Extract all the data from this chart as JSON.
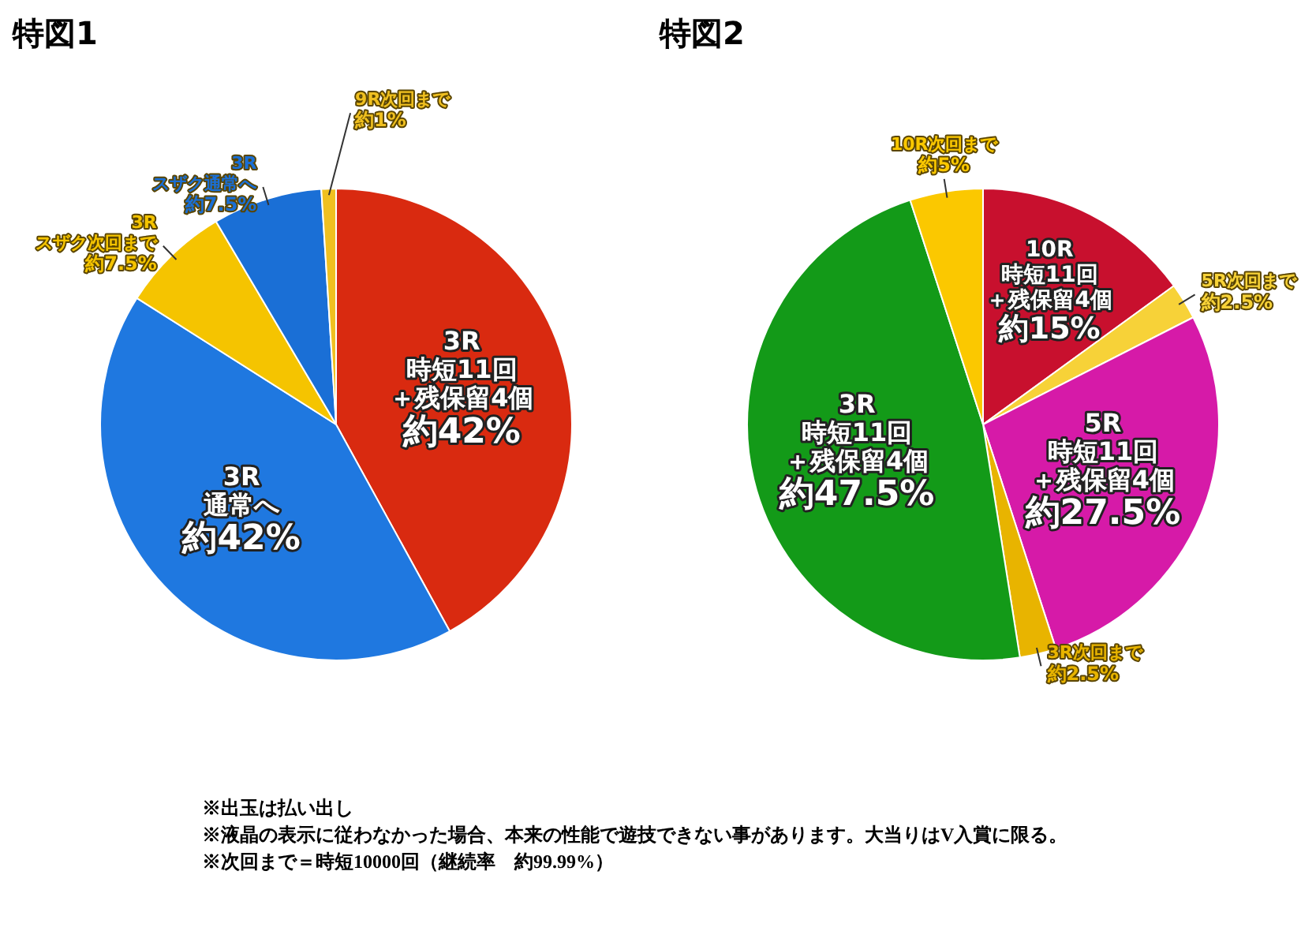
{
  "chart_data": [
    {
      "type": "pie",
      "title": "特図1",
      "categories": [
        "3R\n時短11回＋残保留4個",
        "3R\n通常へ",
        "3R\nスザク次回まで",
        "3R\nスザク通常へ",
        "9R次回まで"
      ],
      "values": [
        42,
        42,
        7.5,
        7.5,
        1
      ],
      "value_labels": [
        "約42%",
        "約42%",
        "約7.5%",
        "約7.5%",
        "約1%"
      ],
      "colors": [
        "#d92a10",
        "#1f78e0",
        "#f5c400",
        "#1a6fd6",
        "#f0c020"
      ],
      "legend": false
    },
    {
      "type": "pie",
      "title": "特図2",
      "categories": [
        "10R\n時短11回＋残保留4個",
        "5R次回まで",
        "5R\n時短11回＋残保留4個",
        "3R次回まで",
        "3R\n時短11回＋残保留4個",
        "10R次回まで"
      ],
      "values": [
        15,
        2.5,
        27.5,
        2.5,
        47.5,
        5
      ],
      "value_labels": [
        "約15%",
        "約2.5%",
        "約27.5%",
        "約2.5%",
        "約47.5%",
        "約5%"
      ],
      "colors": [
        "#c8102e",
        "#f7d238",
        "#d61aa8",
        "#e8b400",
        "#139a18",
        "#fbc800"
      ],
      "legend": false,
      "annotations": [
        "※出玉は払い出し",
        "※液晶の表示に従わなかった場合、本来の性能で遊技できない事があります。大当りはV入賞に限る。",
        "※次回まで＝時短10000回（継続率　約99.99%）"
      ]
    }
  ]
}
